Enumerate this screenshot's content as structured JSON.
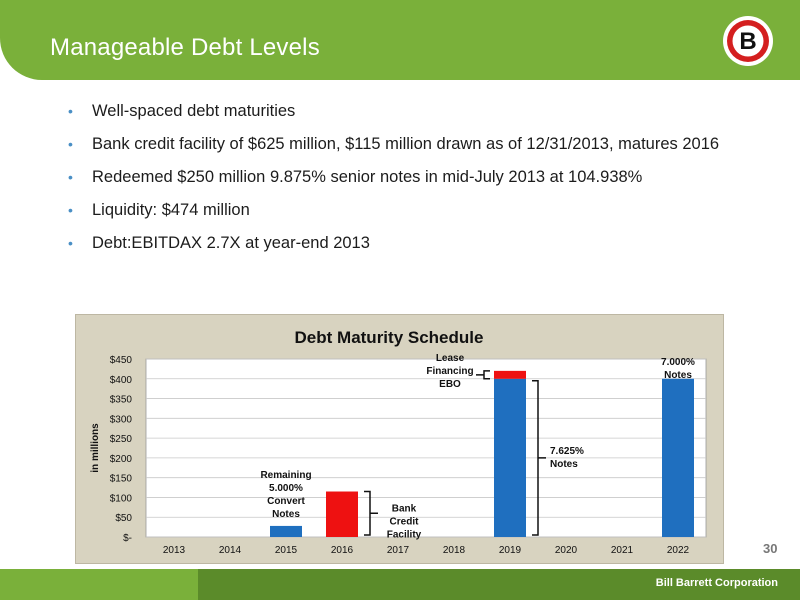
{
  "slide": {
    "title": "Manageable Debt Levels",
    "page_number": "30",
    "footer_company": "Bill Barrett Corporation",
    "logo_letter": "B"
  },
  "bullets": [
    "Well-spaced debt maturities",
    "Bank credit facility of $625 million, $115 million drawn as of 12/31/2013, matures 2016",
    "Redeemed $250 million 9.875% senior notes in mid-July 2013 at 104.938%",
    "Liquidity: $474 million",
    "Debt:EBITDAX 2.7X at year-end 2013"
  ],
  "colors": {
    "header_green": "#7ab03a",
    "footer_dark_green": "#5b8b2a",
    "bar_blue": "#1f6fbf",
    "bar_red": "#ee1111",
    "chart_bg": "#d8d3c0"
  },
  "chart_data": {
    "type": "bar",
    "title": "Debt Maturity Schedule",
    "ylabel": "in millions",
    "ylim": [
      0,
      450
    ],
    "yticks": [
      "$-",
      "$50",
      "$100",
      "$150",
      "$200",
      "$250",
      "$300",
      "$350",
      "$400",
      "$450"
    ],
    "categories": [
      "2013",
      "2014",
      "2015",
      "2016",
      "2017",
      "2018",
      "2019",
      "2020",
      "2021",
      "2022"
    ],
    "stacked": true,
    "series": [
      {
        "color": "#1f6fbf",
        "values": [
          0,
          0,
          28,
          0,
          0,
          0,
          400,
          0,
          0,
          400
        ]
      },
      {
        "color": "#ee1111",
        "values": [
          0,
          0,
          0,
          115,
          0,
          0,
          20,
          0,
          0,
          0
        ]
      }
    ],
    "annotations": [
      {
        "lines": [
          "Remaining",
          "5.000%",
          "Convert",
          "Notes"
        ]
      },
      {
        "lines": [
          "Bank",
          "Credit",
          "Facility"
        ]
      },
      {
        "lines": [
          "Lease",
          "Financing",
          "EBO"
        ]
      },
      {
        "lines": [
          "7.625%",
          "Notes"
        ]
      },
      {
        "lines": [
          "7.000%",
          "Notes"
        ]
      }
    ],
    "grid": true
  }
}
